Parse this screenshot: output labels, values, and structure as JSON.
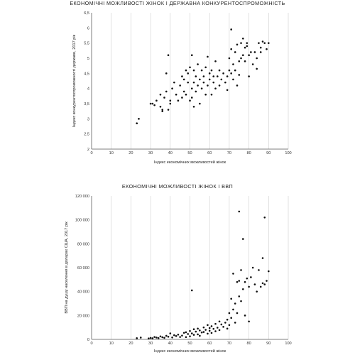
{
  "chart_data": [
    {
      "type": "scatter",
      "title": "ЕКОНОМІЧНІ МОЖЛИВОСТІ ЖІНОК І ДЕРЖАВНА КОНКУРЕНТОСПРОМОЖНІСТЬ",
      "xlabel": "Індекс економічних можливостей жінок",
      "ylabel": "Індекс конкурентоспроможності держави, 2017 рік",
      "xlim": [
        0,
        100
      ],
      "ylim": [
        2,
        6.5
      ],
      "xticks": [
        "0",
        "10",
        "20",
        "30",
        "40",
        "50",
        "60",
        "70",
        "80",
        "90",
        "100"
      ],
      "yticks": [
        "2",
        "2,5",
        "3",
        "3,5",
        "4",
        "4,5",
        "5",
        "5,5",
        "6",
        "6,5"
      ],
      "grid": "vertical",
      "color": "#111111",
      "points": [
        [
          23,
          2.85
        ],
        [
          24,
          3.0
        ],
        [
          30,
          3.5
        ],
        [
          31,
          3.5
        ],
        [
          32,
          3.45
        ],
        [
          33,
          3.6
        ],
        [
          35,
          3.4
        ],
        [
          35,
          3.8
        ],
        [
          36,
          3.25
        ],
        [
          36,
          3.3
        ],
        [
          37,
          3.7
        ],
        [
          38,
          3.9
        ],
        [
          38,
          4.5
        ],
        [
          39,
          3.3
        ],
        [
          39,
          5.1
        ],
        [
          40,
          3.5
        ],
        [
          40,
          3.6
        ],
        [
          41,
          4.0
        ],
        [
          42,
          4.2
        ],
        [
          43,
          3.8
        ],
        [
          44,
          3.6
        ],
        [
          45,
          4.1
        ],
        [
          46,
          3.7
        ],
        [
          46,
          4.4
        ],
        [
          47,
          3.9
        ],
        [
          47,
          4.3
        ],
        [
          48,
          4.6
        ],
        [
          48,
          3.8
        ],
        [
          49,
          4.2
        ],
        [
          49,
          4.5
        ],
        [
          50,
          3.6
        ],
        [
          50,
          4.7
        ],
        [
          51,
          3.7
        ],
        [
          51,
          4.0
        ],
        [
          51,
          5.1
        ],
        [
          52,
          3.4
        ],
        [
          52,
          4.2
        ],
        [
          52,
          4.6
        ],
        [
          53,
          4.4
        ],
        [
          53,
          3.9
        ],
        [
          54,
          4.1
        ],
        [
          54,
          4.8
        ],
        [
          55,
          3.5
        ],
        [
          55,
          4.3
        ],
        [
          56,
          4.0
        ],
        [
          56,
          4.6
        ],
        [
          57,
          4.2
        ],
        [
          57,
          4.4
        ],
        [
          58,
          3.8
        ],
        [
          58,
          4.7
        ],
        [
          59,
          4.1
        ],
        [
          59,
          5.05
        ],
        [
          60,
          4.3
        ],
        [
          60,
          4.5
        ],
        [
          61,
          3.8
        ],
        [
          61,
          4.6
        ],
        [
          62,
          4.2
        ],
        [
          62,
          4.4
        ],
        [
          63,
          4.0
        ],
        [
          63,
          4.9
        ],
        [
          64,
          4.4
        ],
        [
          65,
          4.1
        ],
        [
          65,
          4.6
        ],
        [
          66,
          4.3
        ],
        [
          67,
          4.5
        ],
        [
          68,
          4.2
        ],
        [
          69,
          3.95
        ],
        [
          69,
          4.4
        ],
        [
          70,
          4.6
        ],
        [
          70,
          5.0
        ],
        [
          71,
          4.5
        ],
        [
          71,
          5.3
        ],
        [
          71,
          5.95
        ],
        [
          72,
          4.3
        ],
        [
          72,
          4.8
        ],
        [
          73,
          4.6
        ],
        [
          73,
          5.2
        ],
        [
          74,
          4.1
        ],
        [
          74,
          5.45
        ],
        [
          75,
          4.45
        ],
        [
          75,
          4.9
        ],
        [
          76,
          5.0
        ],
        [
          76,
          5.5
        ],
        [
          77,
          5.1
        ],
        [
          77,
          5.65
        ],
        [
          78,
          4.9
        ],
        [
          78,
          5.35
        ],
        [
          79,
          5.4
        ],
        [
          79,
          5.5
        ],
        [
          80,
          4.4
        ],
        [
          80,
          5.1
        ],
        [
          81,
          5.2
        ],
        [
          82,
          4.8
        ],
        [
          83,
          5.2
        ],
        [
          84,
          5.0
        ],
        [
          84,
          4.65
        ],
        [
          85,
          5.5
        ],
        [
          86,
          5.35
        ],
        [
          86,
          5.2
        ],
        [
          87,
          5.55
        ],
        [
          88,
          5.5
        ],
        [
          89,
          5.3
        ],
        [
          90,
          5.5
        ]
      ]
    },
    {
      "type": "scatter",
      "title": "ЕКОНОМІЧНІ МОЖЛИВОСТІ ЖІНОК І ВВП",
      "xlabel": "Індекс економічних можливостей жінок",
      "ylabel": "ВВП на душу населення в доларах США, 2017 рік",
      "xlim": [
        0,
        100
      ],
      "ylim": [
        0,
        120000
      ],
      "xticks": [
        "0",
        "10",
        "20",
        "30",
        "40",
        "50",
        "60",
        "70",
        "80",
        "90",
        "100"
      ],
      "yticks": [
        "0",
        "20 000",
        "40 000",
        "60 000",
        "80 000",
        "100 000",
        "120 000"
      ],
      "grid": "vertical",
      "color": "#111111",
      "points": [
        [
          23,
          1000
        ],
        [
          25,
          1500
        ],
        [
          29,
          800
        ],
        [
          30,
          1200
        ],
        [
          31,
          900
        ],
        [
          32,
          2000
        ],
        [
          33,
          1500
        ],
        [
          34,
          1100
        ],
        [
          35,
          2500
        ],
        [
          36,
          1800
        ],
        [
          37,
          1300
        ],
        [
          38,
          3000
        ],
        [
          39,
          2200
        ],
        [
          40,
          5000
        ],
        [
          41,
          1600
        ],
        [
          42,
          3500
        ],
        [
          43,
          2800
        ],
        [
          44,
          4000
        ],
        [
          45,
          2000
        ],
        [
          46,
          3200
        ],
        [
          47,
          5500
        ],
        [
          48,
          6000
        ],
        [
          48,
          1900
        ],
        [
          49,
          4500
        ],
        [
          50,
          7000
        ],
        [
          50,
          2600
        ],
        [
          51,
          41000
        ],
        [
          51,
          5000
        ],
        [
          52,
          3800
        ],
        [
          52,
          8500
        ],
        [
          53,
          6500
        ],
        [
          54,
          4200
        ],
        [
          54,
          9000
        ],
        [
          55,
          7500
        ],
        [
          55,
          3000
        ],
        [
          56,
          5800
        ],
        [
          57,
          10000
        ],
        [
          57,
          6200
        ],
        [
          58,
          8000
        ],
        [
          59,
          4800
        ],
        [
          59,
          12000
        ],
        [
          60,
          7200
        ],
        [
          60,
          9500
        ],
        [
          61,
          11000
        ],
        [
          61,
          5400
        ],
        [
          62,
          8800
        ],
        [
          63,
          13000
        ],
        [
          63,
          6800
        ],
        [
          64,
          9800
        ],
        [
          65,
          7800
        ],
        [
          65,
          15000
        ],
        [
          66,
          12500
        ],
        [
          67,
          10500
        ],
        [
          68,
          14000
        ],
        [
          69,
          9000
        ],
        [
          69,
          16500
        ],
        [
          70,
          22000
        ],
        [
          70,
          12000
        ],
        [
          71,
          34000
        ],
        [
          71,
          18000
        ],
        [
          72,
          55000
        ],
        [
          72,
          25000
        ],
        [
          73,
          30000
        ],
        [
          73,
          14000
        ],
        [
          74,
          48000
        ],
        [
          74,
          22000
        ],
        [
          75,
          49000
        ],
        [
          75,
          36000
        ],
        [
          75,
          107000
        ],
        [
          76,
          58000
        ],
        [
          76,
          32000
        ],
        [
          77,
          42000
        ],
        [
          77,
          84000
        ],
        [
          78,
          20000
        ],
        [
          78,
          48000
        ],
        [
          79,
          51000
        ],
        [
          80,
          44000
        ],
        [
          80,
          15000
        ],
        [
          81,
          52000
        ],
        [
          82,
          60000
        ],
        [
          83,
          46000
        ],
        [
          84,
          40000
        ],
        [
          85,
          58000
        ],
        [
          86,
          44000
        ],
        [
          87,
          68000
        ],
        [
          87,
          47000
        ],
        [
          88,
          102000
        ],
        [
          88,
          46000
        ],
        [
          89,
          49000
        ],
        [
          90,
          57000
        ]
      ]
    }
  ]
}
